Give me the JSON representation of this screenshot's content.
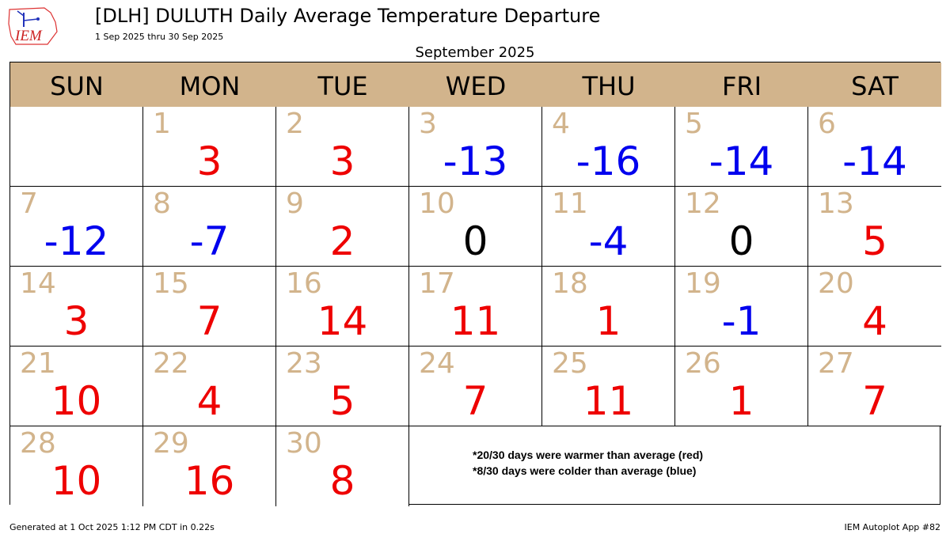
{
  "header": {
    "logo_text": "IEM",
    "title": "[DLH] DULUTH Daily Average Temperature Departure",
    "subtitle": "1 Sep 2025 thru 30 Sep 2025",
    "month_label": "September 2025"
  },
  "colors": {
    "warm": "#ee0000",
    "cold": "#0000ee",
    "neutral": "#000000",
    "day_number": "#d2b48c",
    "header_bg": "#d2b48c"
  },
  "chart_data": {
    "type": "table",
    "weekdays": [
      "SUN",
      "MON",
      "TUE",
      "WED",
      "THU",
      "FRI",
      "SAT"
    ],
    "first_weekday_index": 1,
    "days": [
      {
        "day": "1",
        "value": 3
      },
      {
        "day": "2",
        "value": 3
      },
      {
        "day": "3",
        "value": -13
      },
      {
        "day": "4",
        "value": -16
      },
      {
        "day": "5",
        "value": -14
      },
      {
        "day": "6",
        "value": -14
      },
      {
        "day": "7",
        "value": -12
      },
      {
        "day": "8",
        "value": -7
      },
      {
        "day": "9",
        "value": 2
      },
      {
        "day": "10",
        "value": 0
      },
      {
        "day": "11",
        "value": -4
      },
      {
        "day": "12",
        "value": 0
      },
      {
        "day": "13",
        "value": 5
      },
      {
        "day": "14",
        "value": 3
      },
      {
        "day": "15",
        "value": 7
      },
      {
        "day": "16",
        "value": 14
      },
      {
        "day": "17",
        "value": 11
      },
      {
        "day": "18",
        "value": 1
      },
      {
        "day": "19",
        "value": -1
      },
      {
        "day": "20",
        "value": 4
      },
      {
        "day": "21",
        "value": 10
      },
      {
        "day": "22",
        "value": 4
      },
      {
        "day": "23",
        "value": 5
      },
      {
        "day": "24",
        "value": 7
      },
      {
        "day": "25",
        "value": 11
      },
      {
        "day": "26",
        "value": 1
      },
      {
        "day": "27",
        "value": 7
      },
      {
        "day": "28",
        "value": 10
      },
      {
        "day": "29",
        "value": 16
      },
      {
        "day": "30",
        "value": 8
      }
    ],
    "notes": [
      "*20/30 days were warmer than average (red)",
      "*8/30 days were colder than average (blue)"
    ]
  },
  "footer": {
    "generated": "Generated at 1 Oct 2025 1:12 PM CDT in 0.22s",
    "app": "IEM Autoplot App #82"
  }
}
